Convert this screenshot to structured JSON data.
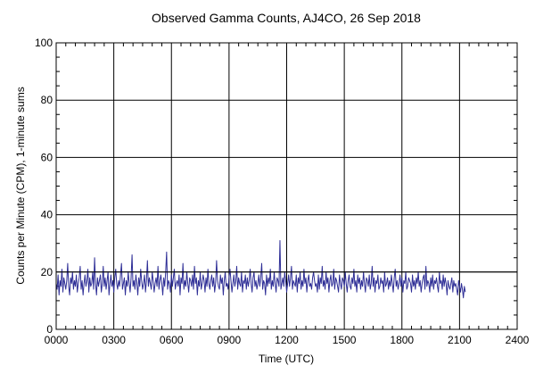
{
  "chart_data": {
    "type": "line",
    "title": "Observed Gamma Counts, AJ4CO, 26 Sep 2018",
    "xlabel": "Time (UTC)",
    "ylabel": "Counts per Minute (CPM), 1-minute sums",
    "xlim": [
      0,
      1440
    ],
    "ylim": [
      0,
      100
    ],
    "x_tick_labels": [
      "0000",
      "0300",
      "0600",
      "0900",
      "1200",
      "1500",
      "1800",
      "2100",
      "2400"
    ],
    "y_tick_labels": [
      "0",
      "20",
      "40",
      "60",
      "80",
      "100"
    ],
    "grid": true,
    "reference_line": 20,
    "series": [
      {
        "color": "#2e2e96",
        "sample_interval_minutes": 3,
        "values": [
          16,
          14,
          19,
          12,
          17,
          15,
          21,
          13,
          18,
          16,
          14,
          17,
          23,
          15,
          12,
          18,
          16,
          20,
          14,
          17,
          15,
          19,
          13,
          16,
          18,
          22,
          14,
          17,
          12,
          16,
          19,
          15,
          17,
          21,
          13,
          18,
          15,
          16,
          20,
          14,
          25,
          16,
          12,
          18,
          15,
          17,
          19,
          13,
          16,
          22,
          15,
          18,
          14,
          17,
          20,
          12,
          16,
          19,
          15,
          17,
          13,
          18,
          21,
          16,
          14,
          17,
          15,
          19,
          23,
          14,
          16,
          18,
          12,
          17,
          15,
          20,
          16,
          13,
          18,
          26,
          15,
          17,
          14,
          19,
          16,
          12,
          18,
          15,
          21,
          17,
          14,
          16,
          19,
          13,
          17,
          24,
          15,
          18,
          16,
          14,
          20,
          17,
          13,
          16,
          18,
          15,
          22,
          14,
          17,
          19,
          16,
          12,
          18,
          15,
          20,
          27,
          14,
          17,
          16,
          13,
          19,
          15,
          18,
          21,
          14,
          16,
          17,
          15,
          19,
          12,
          18,
          16,
          23,
          14,
          17,
          15,
          20,
          16,
          13,
          18,
          17,
          15,
          19,
          14,
          22,
          16,
          18,
          12,
          17,
          15,
          20,
          14,
          16,
          19,
          17,
          13,
          18,
          15,
          21,
          16,
          14,
          17,
          19,
          15,
          18,
          13,
          16,
          24,
          17,
          15,
          14,
          19,
          16,
          18,
          12,
          17,
          20,
          15,
          16,
          14,
          18,
          21,
          17,
          13,
          16,
          19,
          15,
          17,
          22,
          14,
          18,
          16,
          15,
          20,
          13,
          17,
          16,
          19,
          14,
          18,
          15,
          17,
          21,
          16,
          13,
          18,
          20,
          15,
          17,
          14,
          16,
          19,
          15,
          18,
          23,
          14,
          17,
          16,
          12,
          19,
          15,
          18,
          16,
          21,
          14,
          17,
          15,
          20,
          16,
          13,
          18,
          17,
          15,
          31,
          14,
          16,
          18,
          15,
          20,
          17,
          13,
          16,
          19,
          15,
          18,
          22,
          14,
          17,
          16,
          15,
          19,
          13,
          18,
          16,
          20,
          14,
          17,
          15,
          21,
          16,
          18,
          13,
          17,
          19,
          15,
          16,
          14,
          18,
          20,
          17,
          15,
          16,
          13,
          19,
          14,
          18,
          16,
          22,
          15,
          17,
          14,
          20,
          16,
          18,
          13,
          17,
          19,
          15,
          16,
          21,
          14,
          18,
          17,
          15,
          13,
          19,
          16,
          14,
          18,
          17,
          15,
          20,
          16,
          13,
          17,
          19,
          15,
          14,
          18,
          16,
          21,
          15,
          17,
          13,
          19,
          16,
          18,
          14,
          17,
          15,
          20,
          16,
          13,
          18,
          17,
          15,
          19,
          14,
          16,
          22,
          15,
          18,
          13,
          17,
          16,
          19,
          14,
          15,
          18,
          16,
          17,
          13,
          20,
          15,
          16,
          18,
          14,
          17,
          15,
          19,
          16,
          13,
          18,
          21,
          15,
          17,
          14,
          16,
          19,
          15,
          18,
          13,
          17,
          16,
          20,
          14,
          15,
          18,
          17,
          16,
          13,
          19,
          15,
          17,
          14,
          18,
          16,
          20,
          15,
          17,
          13,
          16,
          18,
          19,
          14,
          22,
          15,
          17,
          16,
          13,
          18,
          15,
          19,
          14,
          17,
          16,
          18,
          15,
          13,
          20,
          16,
          17,
          14,
          19,
          15,
          18,
          16,
          12,
          17,
          15,
          14,
          16,
          18,
          13,
          17,
          15,
          16,
          14,
          12,
          17,
          15,
          13,
          16,
          14,
          11,
          15,
          13
        ]
      }
    ]
  }
}
